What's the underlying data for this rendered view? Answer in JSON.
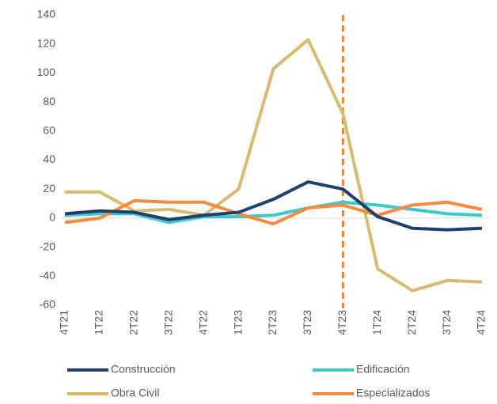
{
  "chart_data": {
    "type": "line",
    "categories": [
      "4T21",
      "1T22",
      "2T22",
      "3T22",
      "4T22",
      "1T23",
      "2T23",
      "3T23",
      "4T23",
      "1T24",
      "2T24",
      "3T24",
      "4T24"
    ],
    "series": [
      {
        "name": "Construcción",
        "color": "#1f3d6e",
        "values": [
          3,
          5,
          4,
          -1,
          2,
          4,
          13,
          25,
          20,
          1,
          -7,
          -8,
          -7
        ]
      },
      {
        "name": "Edificación",
        "color": "#3ec9c9",
        "values": [
          2,
          3,
          3,
          -3,
          1,
          1,
          2,
          7,
          11,
          9,
          6,
          3,
          2
        ]
      },
      {
        "name": "Obra Civil",
        "color": "#d6bc6e",
        "values": [
          18,
          18,
          5,
          6,
          2,
          20,
          103,
          123,
          72,
          -35,
          -50,
          -43,
          -44
        ]
      },
      {
        "name": "Especializados",
        "color": "#f68a3e",
        "values": [
          -3,
          0,
          12,
          11,
          11,
          3,
          -4,
          7,
          9,
          2,
          9,
          11,
          6
        ]
      }
    ],
    "ylim": [
      -60,
      140
    ],
    "yticks": [
      -60,
      -40,
      -20,
      0,
      20,
      40,
      60,
      80,
      100,
      120,
      140
    ],
    "vline": {
      "x": "4T23",
      "color": "#f58220",
      "dashed": true
    },
    "grid": false
  }
}
